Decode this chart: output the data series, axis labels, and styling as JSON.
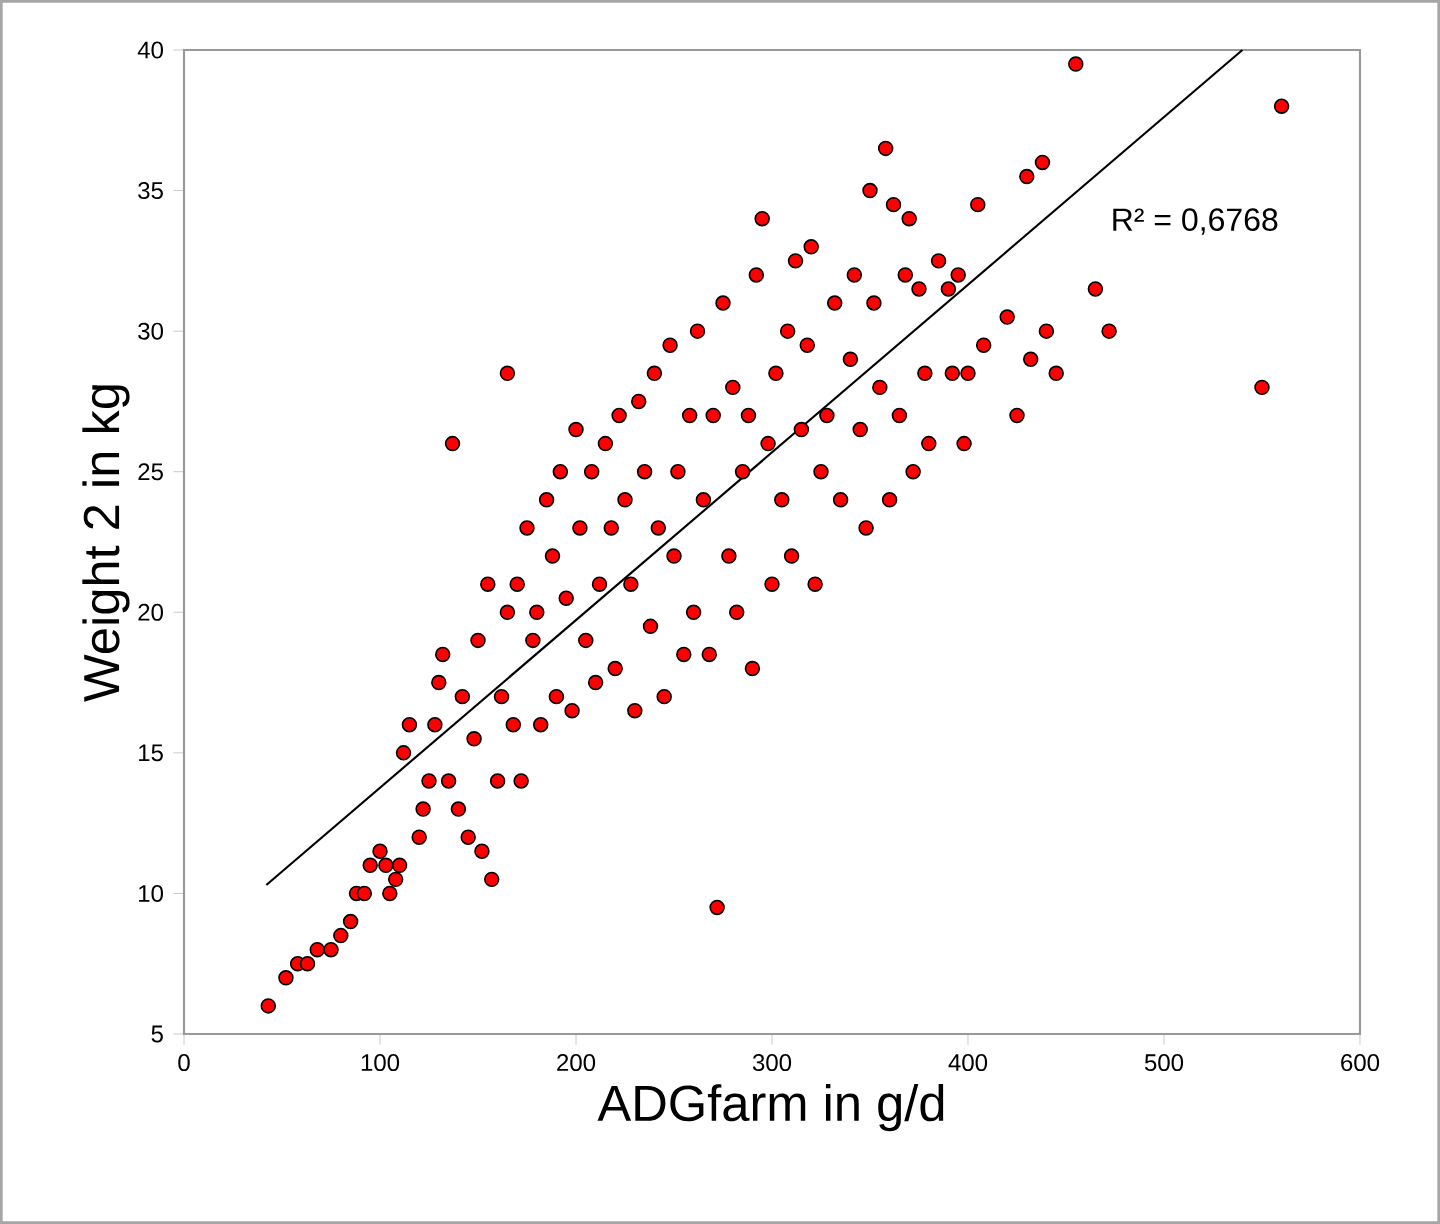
{
  "chart_data": {
    "type": "scatter",
    "xlabel": "ADGfarm in g/d",
    "ylabel": "Weight 2 in kg",
    "xlim": [
      0,
      600
    ],
    "ylim": [
      5,
      40
    ],
    "xticks": [
      0,
      100,
      200,
      300,
      400,
      500,
      600
    ],
    "yticks": [
      5,
      10,
      15,
      20,
      25,
      30,
      35,
      40
    ],
    "grid": false,
    "marker": "circle",
    "annotations": [
      "R² = 0,6768"
    ],
    "series": [
      {
        "color": "#ff0000",
        "x": [
          43,
          52,
          58,
          63,
          68,
          75,
          80,
          85,
          88,
          92,
          95,
          100,
          103,
          105,
          108,
          110,
          112,
          115,
          120,
          122,
          125,
          128,
          130,
          132,
          135,
          137,
          140,
          142,
          145,
          148,
          150,
          152,
          155,
          157,
          160,
          162,
          165,
          165,
          168,
          170,
          172,
          175,
          178,
          180,
          182,
          185,
          188,
          190,
          192,
          195,
          198,
          200,
          202,
          205,
          208,
          210,
          212,
          215,
          218,
          220,
          222,
          225,
          228,
          230,
          232,
          235,
          238,
          240,
          242,
          245,
          248,
          250,
          252,
          255,
          258,
          260,
          262,
          265,
          268,
          270,
          272,
          275,
          278,
          280,
          282,
          285,
          288,
          290,
          292,
          295,
          298,
          300,
          302,
          305,
          308,
          310,
          312,
          315,
          318,
          320,
          322,
          325,
          328,
          332,
          335,
          340,
          342,
          345,
          348,
          350,
          352,
          355,
          358,
          360,
          362,
          365,
          368,
          370,
          372,
          375,
          378,
          380,
          385,
          390,
          392,
          395,
          398,
          400,
          405,
          408,
          420,
          425,
          430,
          432,
          438,
          440,
          445,
          455,
          465,
          472,
          550,
          560
        ],
        "values": [
          6,
          7,
          7.5,
          7.5,
          8,
          8,
          8.5,
          9,
          10,
          10,
          11,
          11.5,
          11,
          10,
          10.5,
          11,
          15,
          16,
          12,
          13,
          14,
          16,
          17.5,
          18.5,
          14,
          26,
          13,
          17,
          12,
          15.5,
          19,
          11.5,
          21,
          10.5,
          14,
          17,
          28.5,
          20,
          16,
          21,
          14,
          23,
          19,
          20,
          16,
          24,
          22,
          17,
          25,
          20.5,
          16.5,
          26.5,
          23,
          19,
          25,
          17.5,
          21,
          26,
          23,
          18,
          27,
          24,
          21,
          16.5,
          27.5,
          25,
          19.5,
          28.5,
          23,
          17,
          29.5,
          22,
          25,
          18.5,
          27,
          20,
          30,
          24,
          18.5,
          27,
          9.5,
          31,
          22,
          28,
          20,
          25,
          27,
          18,
          32,
          34,
          26,
          21,
          28.5,
          24,
          30,
          22,
          32.5,
          26.5,
          29.5,
          33,
          21,
          25,
          27,
          31,
          24,
          29,
          32,
          26.5,
          23,
          35,
          31,
          28,
          36.5,
          24,
          34.5,
          27,
          32,
          34,
          25,
          31.5,
          28.5,
          26,
          32.5,
          31.5,
          28.5,
          32,
          26,
          28.5,
          34.5,
          29.5,
          30.5,
          27,
          35.5,
          29,
          36,
          30,
          28.5,
          39.5,
          31.5,
          30,
          28,
          38
        ]
      },
      {
        "type": "line",
        "color": "#000000",
        "marker": "none",
        "x": [
          42,
          540
        ],
        "values": [
          10.3,
          40
        ]
      }
    ]
  }
}
